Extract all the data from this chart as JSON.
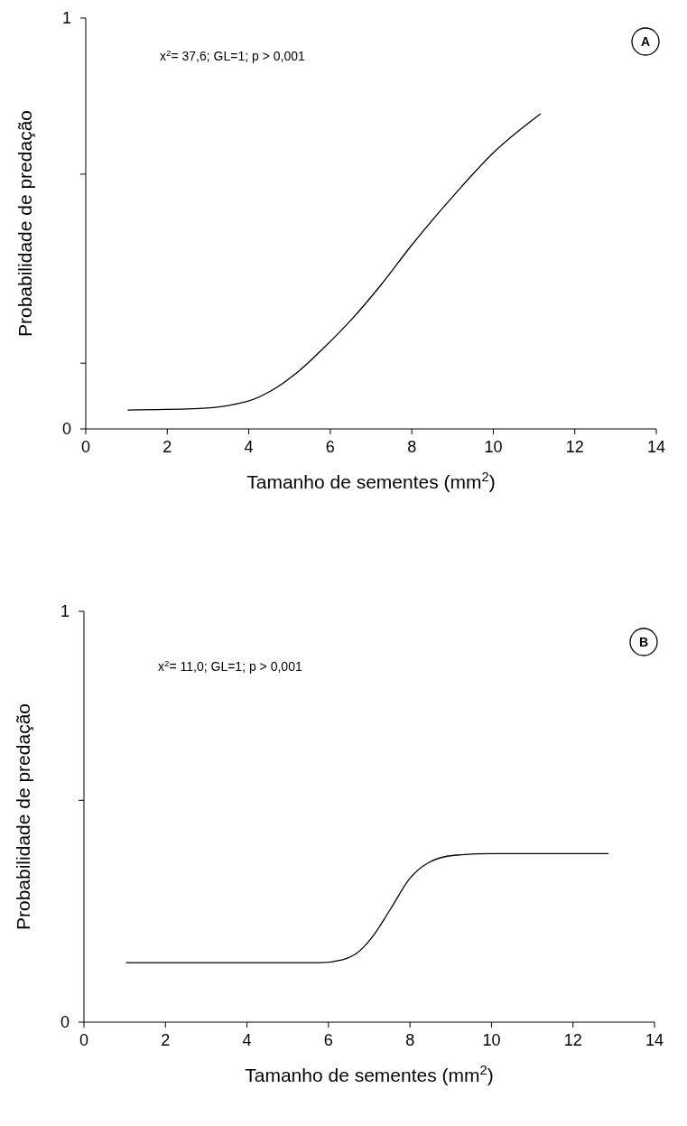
{
  "chart_data": [
    {
      "type": "line",
      "xlabel": "Tamanho de sementes (mm$^{2}$)",
      "ylabel": "Probabilidade de predação",
      "annotations": [
        "x$^{2}$= 37,6; GL=1; p > 0,001",
        "A"
      ],
      "x": [
        1.03,
        2.65,
        3.93,
        4.67,
        5.22,
        5.87,
        6.51,
        7.24,
        7.98,
        9.09,
        10.0,
        11.16
      ],
      "series": [
        {
          "color": "#000000",
          "values": [
            0.046,
            0.049,
            0.066,
            0.1,
            0.14,
            0.2,
            0.265,
            0.35,
            0.445,
            0.575,
            0.672,
            0.767
          ]
        }
      ],
      "xlim": [
        0,
        14
      ],
      "xticks": [
        0,
        2,
        4,
        6,
        8,
        10,
        12,
        14
      ],
      "ylim": [
        0,
        1
      ],
      "yticks": [
        {
          "value": 0,
          "label": "0"
        },
        {
          "value": 0.16,
          "label": null
        },
        {
          "value": 0.62,
          "label": null
        },
        {
          "value": 1,
          "label": "1"
        }
      ],
      "marker": "none",
      "line_style": "solid"
    },
    {
      "type": "line",
      "xlabel": "Tamanho de sementes (mm$^{2}$)",
      "ylabel": "Probabilidade de predação",
      "annotations": [
        "x$^{2}$= 11,0; GL=1; p > 0,001",
        "B"
      ],
      "x": [
        1.03,
        5.8,
        6.35,
        6.71,
        7.08,
        7.54,
        7.99,
        8.45,
        9.09,
        10.0,
        12.87
      ],
      "series": [
        {
          "color": "#000000",
          "values": [
            0.145,
            0.145,
            0.152,
            0.169,
            0.208,
            0.278,
            0.349,
            0.388,
            0.406,
            0.41,
            0.41
          ]
        }
      ],
      "xlim": [
        0,
        14
      ],
      "xticks": [
        0,
        2,
        4,
        6,
        8,
        10,
        12,
        14
      ],
      "ylim": [
        0,
        1
      ],
      "yticks": [
        {
          "value": 0,
          "label": "0"
        },
        {
          "value": 0.54,
          "label": null
        },
        {
          "value": 1,
          "label": "1"
        }
      ],
      "marker": "none",
      "line_style": "solid"
    }
  ]
}
